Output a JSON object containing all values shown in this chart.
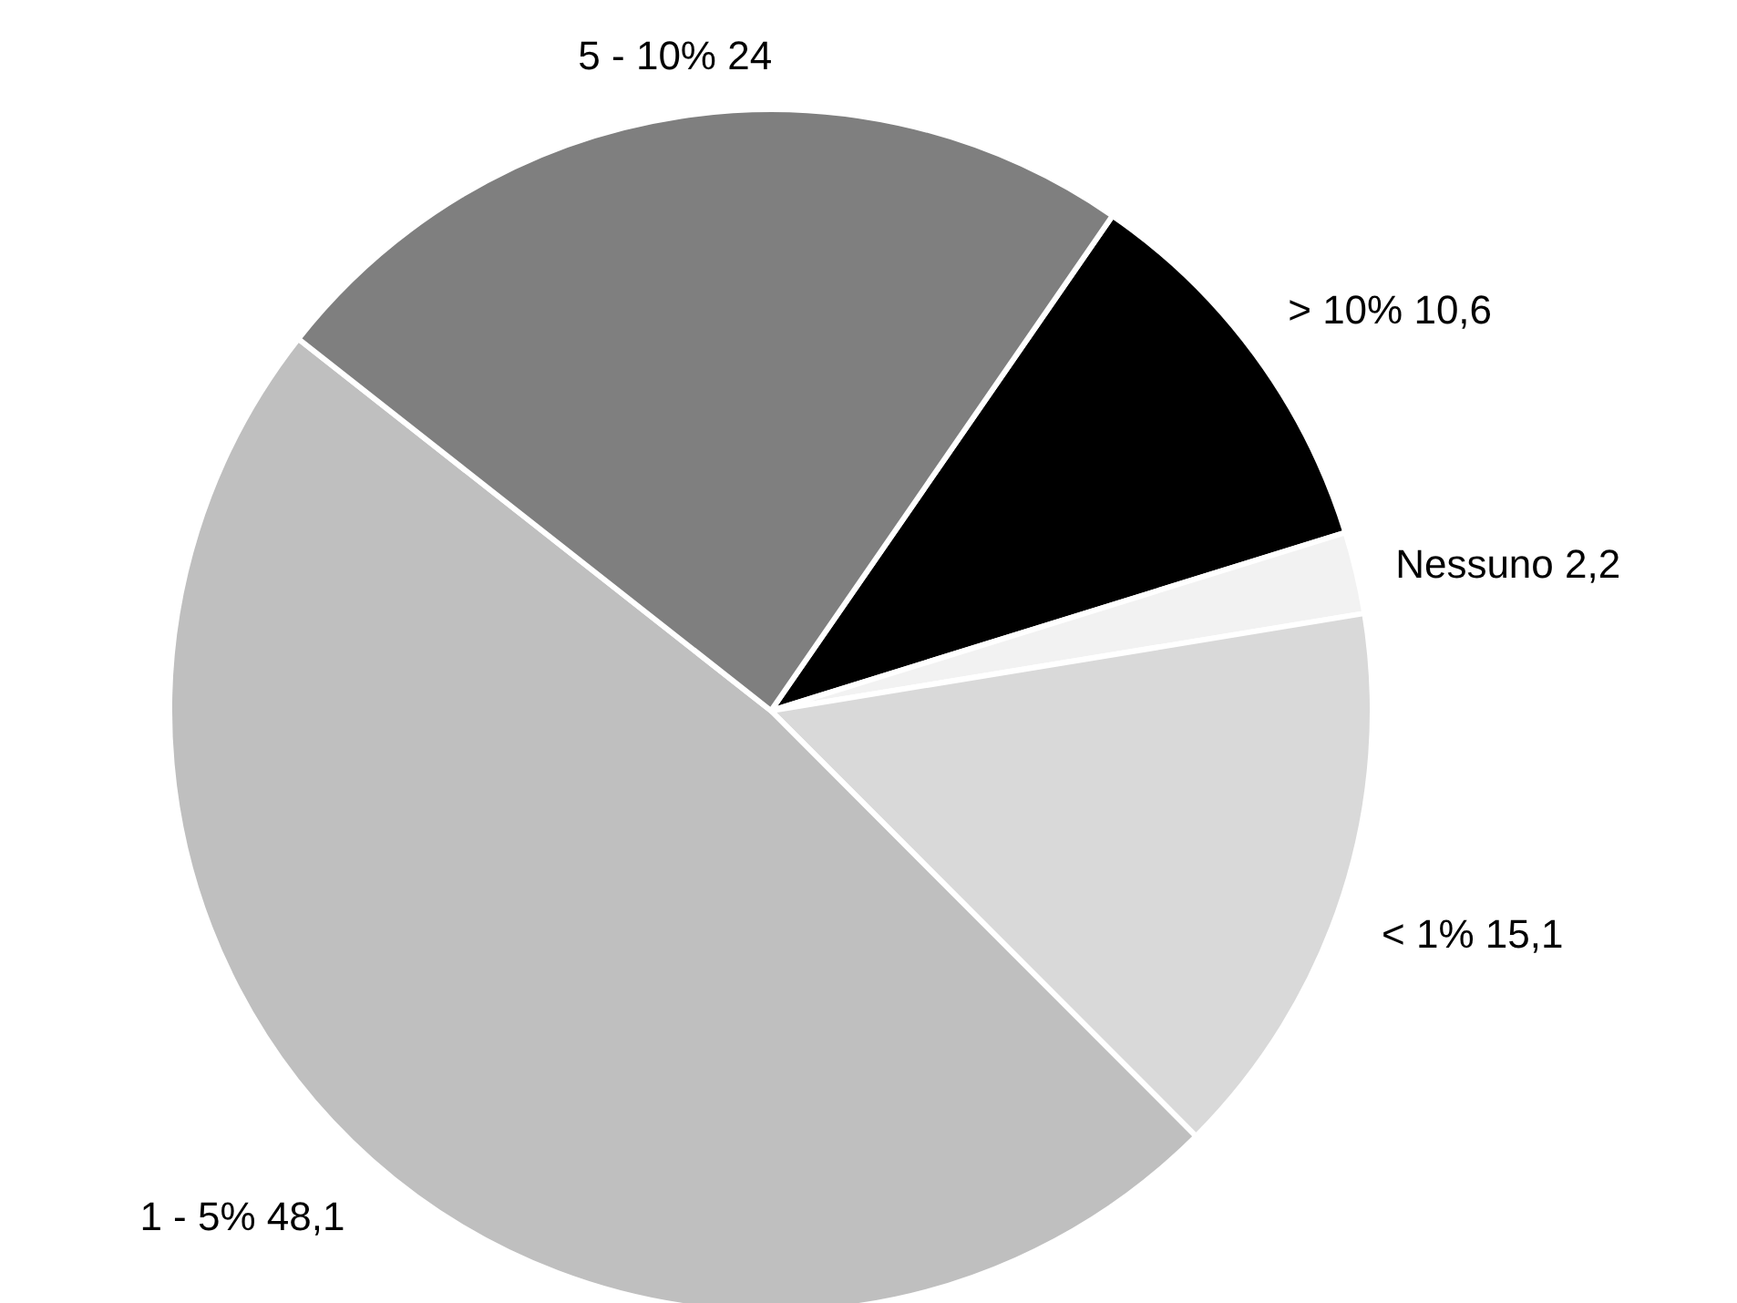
{
  "chart_data": {
    "type": "pie",
    "categories": [
      "> 10%",
      "Nessuno",
      "< 1%",
      "1 - 5%",
      "5 - 10%"
    ],
    "values": [
      10.6,
      2.2,
      15.1,
      48.1,
      24
    ],
    "value_labels": [
      "10,6",
      "2,2",
      "15,1",
      "48,1",
      "24"
    ],
    "colors": [
      "#000000",
      "#f2f2f2",
      "#d9d9d9",
      "#bfbfbf",
      "#7f7f7f"
    ]
  }
}
